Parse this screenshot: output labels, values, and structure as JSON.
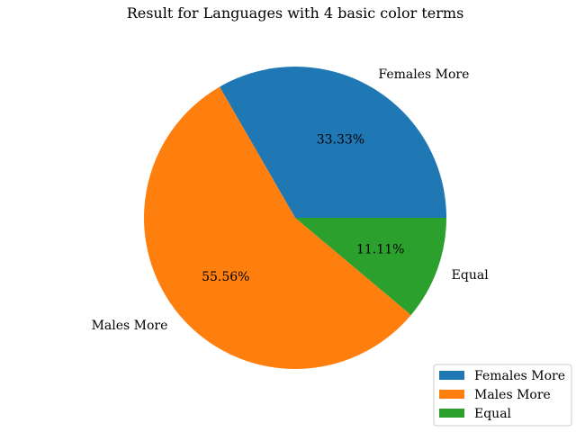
{
  "chart_data": {
    "type": "pie",
    "title": "Result for Languages with 4 basic color terms",
    "slices": [
      {
        "label": "Females More",
        "value": 33.33,
        "pct_label": "33.33%",
        "color": "#1f77b4"
      },
      {
        "label": "Males More",
        "value": 55.56,
        "pct_label": "55.56%",
        "color": "#ff7f0e"
      },
      {
        "label": "Equal",
        "value": 11.11,
        "pct_label": "11.11%",
        "color": "#2ca02c"
      }
    ],
    "legend": {
      "placement": "lower-right",
      "entries": [
        "Females More",
        "Males More",
        "Equal"
      ]
    }
  }
}
